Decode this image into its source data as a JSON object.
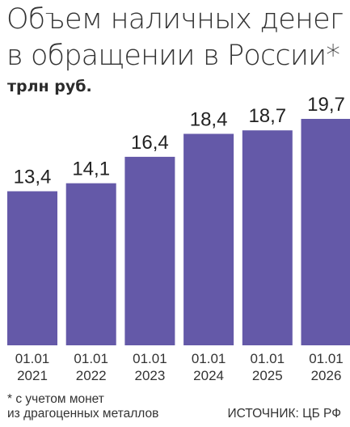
{
  "header": {
    "title_line1": "Объем наличных денег",
    "title_line2": "в обращении в России*",
    "unit": "трлн руб."
  },
  "chart_data": {
    "type": "bar",
    "categories": [
      [
        "01.01",
        "2021"
      ],
      [
        "01.01",
        "2022"
      ],
      [
        "01.01",
        "2023"
      ],
      [
        "01.01",
        "2024"
      ],
      [
        "01.01",
        "2025"
      ],
      [
        "01.01",
        "2026"
      ]
    ],
    "values": [
      13.4,
      14.1,
      16.4,
      18.4,
      18.7,
      19.7
    ],
    "value_labels": [
      "13,4",
      "14,1",
      "16,4",
      "18,4",
      "18,7",
      "19,7"
    ],
    "unit": "трлн руб.",
    "ylim": [
      0,
      19.7
    ],
    "grid": false,
    "legend": "none",
    "bar_color": "#6459a8"
  },
  "footer": {
    "note_line1": "* с учетом монет",
    "note_line2": "из драгоценных металлов",
    "source": "ИСТОЧНИК: ЦБ РФ"
  }
}
